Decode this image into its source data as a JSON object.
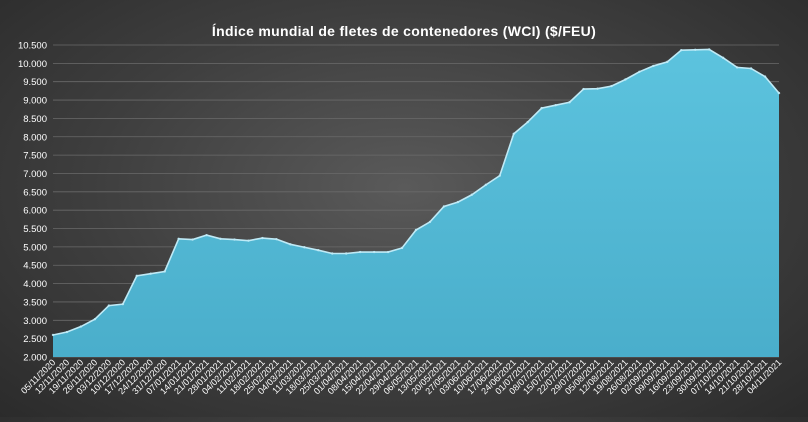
{
  "chart_data": {
    "type": "area",
    "title": "Índice mundial de fletes de contenedores (WCI) ($/FEU)",
    "xlabel": "",
    "ylabel": "",
    "ylim": [
      2000,
      10500
    ],
    "yticks": [
      2000,
      2500,
      3000,
      3500,
      4000,
      4500,
      5000,
      5500,
      6000,
      6500,
      7000,
      7500,
      8000,
      8500,
      9000,
      9500,
      10000,
      10500
    ],
    "ytick_labels": [
      "2.000",
      "2.500",
      "3.000",
      "3.500",
      "4.000",
      "4.500",
      "5.000",
      "5.500",
      "6.000",
      "6.500",
      "7.000",
      "7.500",
      "8.000",
      "8.500",
      "9.000",
      "9.500",
      "10.000",
      "10.500"
    ],
    "grid": true,
    "x": [
      "05/11/2020",
      "12/11/2020",
      "19/11/2020",
      "26/11/2020",
      "03/12/2020",
      "10/12/2020",
      "17/12/2020",
      "24/12/2020",
      "31/12/2020",
      "07/01/2021",
      "14/01/2021",
      "21/01/2021",
      "28/01/2021",
      "04/02/2021",
      "11/02/2021",
      "18/02/2021",
      "25/02/2021",
      "04/03/2021",
      "11/03/2021",
      "18/03/2021",
      "25/03/2021",
      "01/04/2021",
      "08/04/2021",
      "15/04/2021",
      "22/04/2021",
      "29/04/2021",
      "06/05/2021",
      "13/05/2021",
      "20/05/2021",
      "27/05/2021",
      "03/06/2021",
      "10/06/2021",
      "17/06/2021",
      "24/06/2021",
      "01/07/2021",
      "08/07/2021",
      "15/07/2021",
      "22/07/2021",
      "29/07/2021",
      "05/08/2021",
      "12/08/2021",
      "19/08/2021",
      "26/08/2021",
      "02/09/2021",
      "09/09/2021",
      "16/09/2021",
      "23/09/2021",
      "30/09/2021",
      "07/10/2021",
      "14/10/2021",
      "21/10/2021",
      "28/10/2021",
      "04/11/2021"
    ],
    "series": [
      {
        "name": "",
        "values": [
          2600,
          2680,
          2830,
          3030,
          3400,
          3440,
          4210,
          4270,
          4330,
          5220,
          5200,
          5320,
          5220,
          5200,
          5170,
          5240,
          5210,
          5070,
          4990,
          4910,
          4820,
          4820,
          4860,
          4860,
          4860,
          4970,
          5460,
          5680,
          6100,
          6220,
          6420,
          6690,
          6940,
          8080,
          8400,
          8780,
          8860,
          8940,
          9300,
          9310,
          9380,
          9560,
          9770,
          9930,
          10040,
          10360,
          10370,
          10380,
          10150,
          9890,
          9860,
          9640,
          9190
        ]
      }
    ],
    "colors": {
      "area_fill": "#4fb6d3",
      "area_edge": "#bfeaf6",
      "grid": "#6a6a6a",
      "text": "#ffffff"
    }
  }
}
